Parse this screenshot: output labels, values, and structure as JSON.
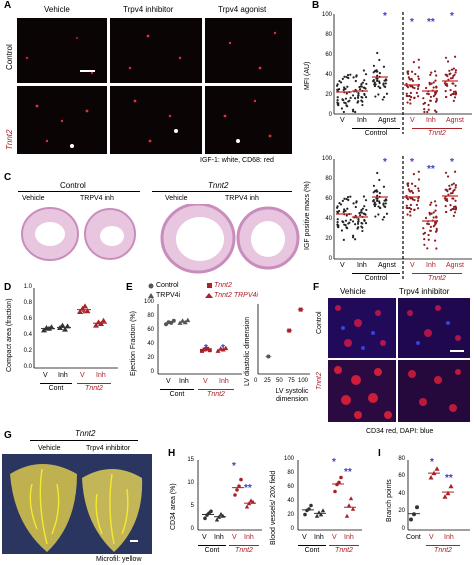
{
  "panelA": {
    "label": "A",
    "cols": [
      "Vehicle",
      "Trpv4 inhibitor",
      "Trpv4 agonist"
    ],
    "rows": [
      "Control",
      "Tnnt2"
    ],
    "caption": "IGF-1: white, CD68: red"
  },
  "panelB": {
    "label": "B",
    "top": {
      "ylabel": "MFI (AU)",
      "yticks": [
        "0",
        "20",
        "40",
        "60",
        "80",
        "100"
      ],
      "xticks": [
        "V",
        "Inh",
        "Agnst",
        "V",
        "Inh",
        "Agnst"
      ],
      "group_left": "Control",
      "group_right": "Tnnt2",
      "stars": [
        "*",
        "*",
        "**",
        "*"
      ]
    },
    "bottom": {
      "ylabel": "IGF positive macs (%)",
      "yticks": [
        "0",
        "20",
        "40",
        "60",
        "80",
        "100"
      ],
      "xticks": [
        "V",
        "Inh",
        "Agnst",
        "V",
        "Inh",
        "Agnst"
      ],
      "group_left": "Control",
      "group_right": "Tnnt2",
      "stars": [
        "*",
        "*",
        "**",
        "*"
      ]
    }
  },
  "panelC": {
    "label": "C",
    "group_left": "Control",
    "group_right": "Tnnt2",
    "cols": [
      "Vehicle",
      "TRPV4 inh",
      "Vehicle",
      "TRPV4 inh"
    ]
  },
  "panelD": {
    "label": "D",
    "ylabel": "Compact area (fraction)",
    "yticks": [
      "0.0",
      "0.2",
      "0.4",
      "0.6",
      "0.8",
      "1.0"
    ],
    "xticks": [
      "V",
      "Inh",
      "V",
      "Inh"
    ],
    "group_left": "Cont",
    "group_right": "Tnnt2",
    "star": "*"
  },
  "panelE": {
    "label": "E",
    "legend": [
      "Control",
      "TRPV4i",
      "Tnnt2",
      "Tnnt2 TRPV4i"
    ],
    "ylabel": "Ejection Fraction (%)",
    "yticks": [
      "0",
      "20",
      "40",
      "60",
      "80",
      "100"
    ],
    "xticks": [
      "V",
      "Inh",
      "V",
      "Inh"
    ],
    "group_left": "Cont",
    "group_right": "Tnnt2",
    "stars": [
      "*",
      "*"
    ],
    "scatter": {
      "ylabel": "LV diastolic dimension",
      "xlabel": "LV systolic dimension",
      "xticks": [
        "0",
        "25",
        "50",
        "75",
        "100"
      ]
    }
  },
  "panelF": {
    "label": "F",
    "cols": [
      "Vehicle",
      "Trpv4 inhibitor"
    ],
    "rows": [
      "Control",
      "Tnnt2"
    ],
    "caption": "CD34 red, DAPI: blue"
  },
  "panelG": {
    "label": "G",
    "title": "Tnnt2",
    "cols": [
      "Vehicle",
      "Trpv4 inhibitor"
    ],
    "caption": "Microfil: yellow"
  },
  "panelH": {
    "label": "H",
    "left": {
      "ylabel": "CD34 area (%)",
      "yticks": [
        "0",
        "5",
        "10",
        "15"
      ],
      "xticks": [
        "V",
        "Inh",
        "V",
        "Inh"
      ],
      "group_left": "Cont",
      "group_right": "Tnnt2",
      "stars": [
        "*",
        "**"
      ]
    },
    "right": {
      "ylabel": "Blood vessels/ 20X field",
      "yticks": [
        "0",
        "20",
        "40",
        "60",
        "80",
        "100"
      ],
      "xticks": [
        "V",
        "Inh",
        "V",
        "Inh"
      ],
      "group_left": "Cont",
      "group_right": "Tnnt2",
      "stars": [
        "*",
        "**"
      ]
    }
  },
  "panelI": {
    "label": "I",
    "ylabel": "Branch points",
    "yticks": [
      "0",
      "20",
      "40",
      "60",
      "80"
    ],
    "xticks": [
      "Cont",
      "V",
      "Inh"
    ],
    "group_right": "Tnnt2",
    "stars": [
      "*",
      "**"
    ]
  },
  "chart_data": [
    {
      "type": "scatter",
      "ylabel": "MFI (AU)",
      "ylim": [
        0,
        100
      ],
      "categories": [
        "Control V",
        "Control Inh",
        "Control Agnst",
        "Tnnt2 V",
        "Tnnt2 Inh",
        "Tnnt2 Agnst"
      ],
      "medians": [
        22,
        23,
        37,
        29,
        23,
        33
      ]
    },
    {
      "type": "scatter",
      "ylabel": "IGF positive macs (%)",
      "ylim": [
        0,
        100
      ],
      "categories": [
        "Control V",
        "Control Inh",
        "Control Agnst",
        "Tnnt2 V",
        "Tnnt2 Inh",
        "Tnnt2 Agnst"
      ],
      "medians": [
        45,
        42,
        62,
        62,
        38,
        63
      ]
    },
    {
      "type": "scatter",
      "ylabel": "Compact area (fraction)",
      "ylim": [
        0,
        1
      ],
      "categories": [
        "Cont V",
        "Cont Inh",
        "Tnnt2 V",
        "Tnnt2 Inh"
      ],
      "series": [
        {
          "values": [
            [
              0.47,
              0.5,
              0.49,
              0.51
            ],
            [
              0.5,
              0.53,
              0.48,
              0.52
            ],
            [
              0.7,
              0.74,
              0.77,
              0.71
            ],
            [
              0.53,
              0.57,
              0.55,
              0.59
            ]
          ]
        }
      ]
    },
    {
      "type": "scatter",
      "ylabel": "Ejection Fraction (%)",
      "ylim": [
        0,
        100
      ],
      "categories": [
        "Cont V",
        "Cont Inh",
        "Tnnt2 V",
        "Tnnt2 Inh"
      ],
      "series": [
        {
          "values": [
            [
              71,
              74,
              73,
              76
            ],
            [
              73,
              76,
              74,
              77
            ],
            [
              33,
              35,
              36,
              34
            ],
            [
              33,
              36,
              35,
              37
            ]
          ]
        }
      ]
    },
    {
      "type": "scatter",
      "xlabel": "LV systolic dimension",
      "ylabel": "LV diastolic dimension",
      "xlim": [
        0,
        100
      ],
      "points": [
        {
          "x": 20,
          "y": 25
        },
        {
          "x": 60,
          "y": 62
        },
        {
          "x": 82,
          "y": 92
        }
      ]
    },
    {
      "type": "scatter",
      "ylabel": "CD34 area (%)",
      "ylim": [
        0,
        15
      ],
      "categories": [
        "Cont V",
        "Cont Inh",
        "Tnnt2 V",
        "Tnnt2 Inh"
      ],
      "series": [
        {
          "values": [
            [
              2.5,
              3.2,
              3.6,
              4.0
            ],
            [
              2.2,
              2.8,
              3.4,
              3.0
            ],
            [
              7.5,
              8.6,
              9.4,
              10.8
            ],
            [
              5.0,
              5.7,
              6.3,
              6.0
            ]
          ]
        }
      ]
    },
    {
      "type": "scatter",
      "ylabel": "Blood vessels/ 20X field",
      "ylim": [
        0,
        100
      ],
      "categories": [
        "Cont V",
        "Cont Inh",
        "Tnnt2 V",
        "Tnnt2 Inh"
      ],
      "series": [
        {
          "values": [
            [
              22,
              28,
              30,
              35
            ],
            [
              20,
              25,
              22,
              28
            ],
            [
              55,
              65,
              68,
              75
            ],
            [
              20,
              35,
              45,
              30
            ]
          ]
        }
      ]
    },
    {
      "type": "scatter",
      "ylabel": "Branch points",
      "ylim": [
        0,
        80
      ],
      "categories": [
        "Cont",
        "V",
        "Inh"
      ],
      "series": [
        {
          "values": [
            [
              12,
              18,
              26
            ],
            [
              60,
              65,
              70
            ],
            [
              38,
              42,
              50
            ]
          ]
        }
      ]
    }
  ]
}
